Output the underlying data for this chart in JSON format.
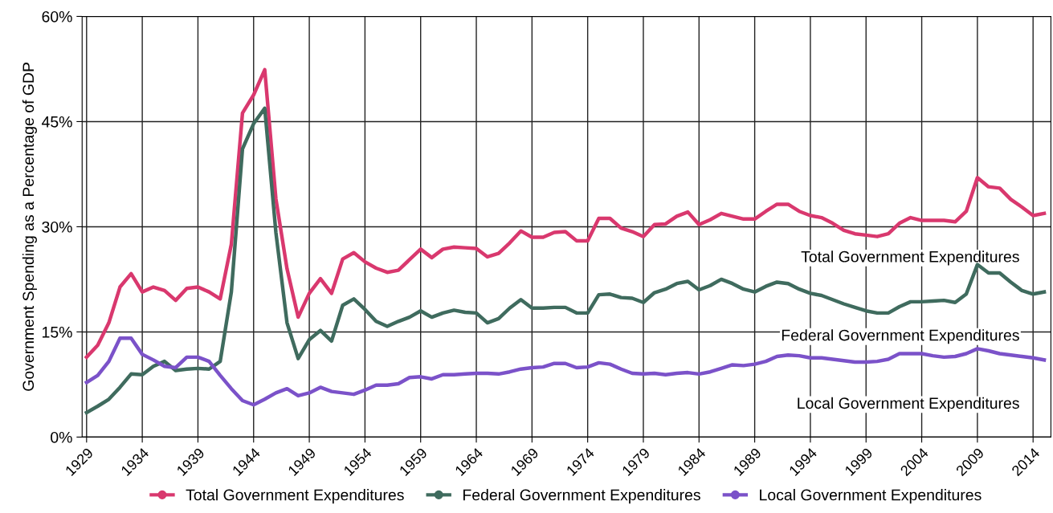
{
  "chart_data": {
    "type": "line",
    "ylabel": "Government Spending as a Percentage of GDP",
    "x": [
      1929,
      1930,
      1931,
      1932,
      1933,
      1934,
      1935,
      1936,
      1937,
      1938,
      1939,
      1940,
      1941,
      1942,
      1943,
      1944,
      1945,
      1946,
      1947,
      1948,
      1949,
      1950,
      1951,
      1952,
      1953,
      1954,
      1955,
      1956,
      1957,
      1958,
      1959,
      1960,
      1961,
      1962,
      1963,
      1964,
      1965,
      1966,
      1967,
      1968,
      1969,
      1970,
      1971,
      1972,
      1973,
      1974,
      1975,
      1976,
      1977,
      1978,
      1979,
      1980,
      1981,
      1982,
      1983,
      1984,
      1985,
      1986,
      1987,
      1988,
      1989,
      1990,
      1991,
      1992,
      1993,
      1994,
      1995,
      1996,
      1997,
      1998,
      1999,
      2000,
      2001,
      2002,
      2003,
      2004,
      2005,
      2006,
      2007,
      2008,
      2009,
      2010,
      2011,
      2012,
      2013,
      2014,
      2015
    ],
    "series": [
      {
        "name": "Total Government Expenditures",
        "color": "#d9386e",
        "values": [
          11.4,
          13.1,
          16.3,
          21.4,
          23.3,
          20.7,
          21.4,
          20.9,
          19.5,
          21.2,
          21.4,
          20.7,
          19.7,
          27.5,
          46.2,
          48.8,
          52.4,
          34.0,
          24.0,
          17.1,
          20.5,
          22.6,
          20.5,
          25.4,
          26.3,
          25.0,
          24.1,
          23.5,
          23.8,
          25.3,
          26.8,
          25.6,
          26.8,
          27.1,
          27.0,
          26.9,
          25.7,
          26.2,
          27.7,
          29.4,
          28.5,
          28.5,
          29.2,
          29.3,
          28.0,
          28.0,
          31.2,
          31.2,
          29.8,
          29.3,
          28.6,
          30.3,
          30.4,
          31.5,
          32.1,
          30.3,
          31.0,
          31.9,
          31.5,
          31.1,
          31.1,
          32.2,
          33.2,
          33.2,
          32.2,
          31.6,
          31.3,
          30.5,
          29.5,
          29.0,
          28.8,
          28.6,
          29.0,
          30.5,
          31.3,
          30.9,
          30.9,
          30.9,
          30.7,
          32.2,
          37.0,
          35.7,
          35.5,
          33.9,
          32.8,
          31.6,
          31.9
        ]
      },
      {
        "name": "Federal Government Expenditures",
        "color": "#3f6b5e",
        "values": [
          3.5,
          4.4,
          5.4,
          7.1,
          9.0,
          8.9,
          10.1,
          10.8,
          9.5,
          9.7,
          9.8,
          9.7,
          10.8,
          20.7,
          41.1,
          44.7,
          46.9,
          29.2,
          16.3,
          11.2,
          13.9,
          15.2,
          13.7,
          18.8,
          19.7,
          18.2,
          16.5,
          15.8,
          16.5,
          17.1,
          18.0,
          17.1,
          17.7,
          18.1,
          17.8,
          17.7,
          16.3,
          16.9,
          18.4,
          19.6,
          18.4,
          18.4,
          18.5,
          18.5,
          17.7,
          17.7,
          20.3,
          20.4,
          19.9,
          19.8,
          19.2,
          20.6,
          21.1,
          21.9,
          22.2,
          21.0,
          21.6,
          22.5,
          21.9,
          21.1,
          20.7,
          21.5,
          22.1,
          21.9,
          21.1,
          20.5,
          20.2,
          19.6,
          19.0,
          18.5,
          18.0,
          17.7,
          17.7,
          18.6,
          19.3,
          19.3,
          19.4,
          19.5,
          19.2,
          20.4,
          24.6,
          23.4,
          23.4,
          22.1,
          20.9,
          20.4,
          20.7
        ]
      },
      {
        "name": "Local Government Expenditures",
        "color": "#7b52c9",
        "values": [
          7.8,
          8.8,
          10.8,
          14.1,
          14.1,
          11.8,
          11.0,
          10.1,
          9.9,
          11.4,
          11.4,
          10.8,
          8.8,
          6.9,
          5.2,
          4.6,
          5.4,
          6.3,
          6.9,
          5.9,
          6.3,
          7.1,
          6.5,
          6.3,
          6.1,
          6.7,
          7.4,
          7.4,
          7.6,
          8.5,
          8.6,
          8.3,
          8.9,
          8.9,
          9.0,
          9.1,
          9.1,
          9.0,
          9.3,
          9.7,
          9.9,
          10.0,
          10.5,
          10.5,
          9.9,
          10.0,
          10.6,
          10.4,
          9.7,
          9.1,
          9.0,
          9.1,
          8.9,
          9.1,
          9.2,
          9.0,
          9.3,
          9.8,
          10.3,
          10.2,
          10.4,
          10.8,
          11.5,
          11.7,
          11.6,
          11.3,
          11.3,
          11.1,
          10.9,
          10.7,
          10.7,
          10.8,
          11.1,
          11.9,
          11.9,
          11.9,
          11.6,
          11.4,
          11.5,
          11.9,
          12.6,
          12.3,
          11.9,
          11.7,
          11.5,
          11.3,
          11.0
        ]
      }
    ],
    "xlim": [
      1928.6,
      2015.6
    ],
    "xticks": [
      1929,
      1934,
      1939,
      1944,
      1949,
      1954,
      1959,
      1964,
      1969,
      1974,
      1979,
      1984,
      1989,
      1994,
      1999,
      2004,
      2009,
      2014
    ],
    "ylim": [
      0,
      60
    ],
    "yticks": [
      {
        "value": 0,
        "label": "0%"
      },
      {
        "value": 15,
        "label": "15%"
      },
      {
        "value": 30,
        "label": "30%"
      },
      {
        "value": 45,
        "label": "45%"
      },
      {
        "value": 60,
        "label": "60%"
      }
    ],
    "annotations": [
      "Total Government Expenditures",
      "Federal Government Expenditures",
      "Local Government Expenditures"
    ],
    "grid": true,
    "legend": "bottom",
    "line_style": "solid"
  }
}
